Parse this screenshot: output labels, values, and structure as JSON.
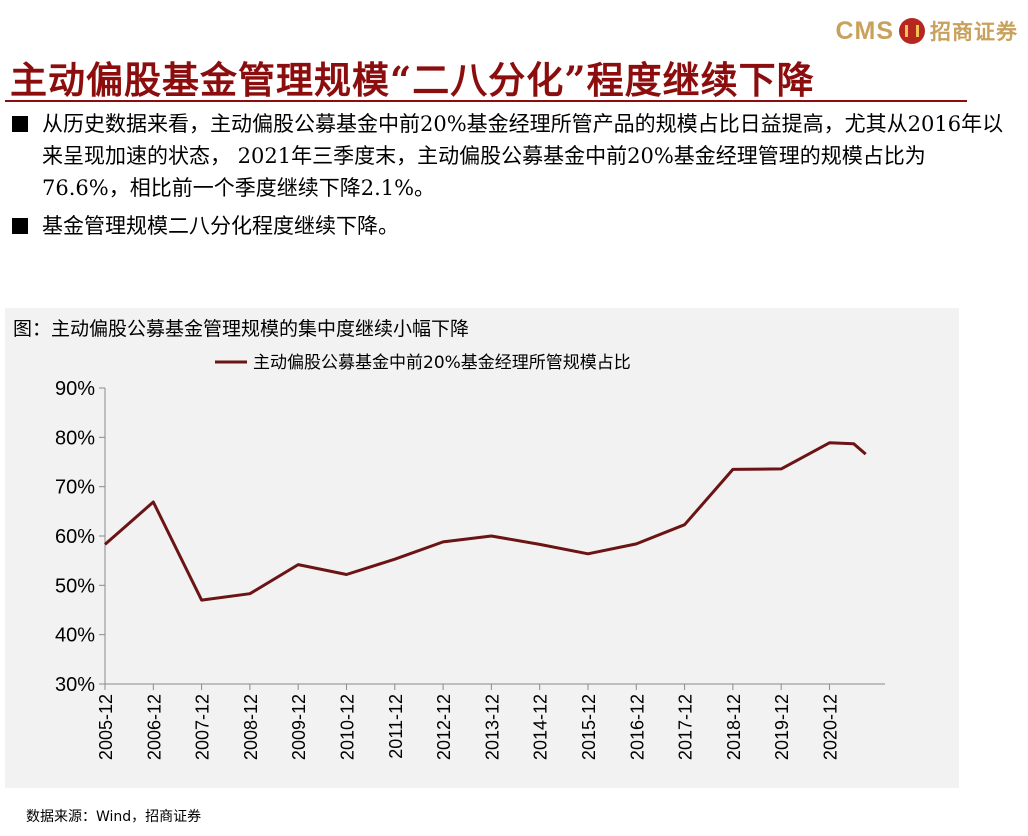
{
  "logo": {
    "cms": "CMS",
    "company": "招商证券"
  },
  "title": "主动偏股基金管理规模“二八分化”程度继续下降",
  "bullets": [
    "从历史数据来看，主动偏股公募基金中前20%基金经理所管产品的规模占比日益提高，尤其从2016年以来呈现加速的状态， 2021年三季度末，主动偏股公募基金中前20%基金经理管理的规模占比为76.6%，相比前一个季度继续下降2.1%。",
    "基金管理规模二八分化程度继续下降。"
  ],
  "chart_data": {
    "type": "line",
    "title": "图：主动偏股公募基金管理规模的集中度继续小幅下降",
    "legend": [
      "主动偏股公募基金中前20%基金经理所管规模占比"
    ],
    "legend_position": "top-center",
    "ylim": [
      30,
      90
    ],
    "yticks": [
      "30%",
      "40%",
      "50%",
      "60%",
      "70%",
      "80%",
      "90%"
    ],
    "xticks": [
      "2005-12",
      "2006-12",
      "2007-12",
      "2008-12",
      "2009-12",
      "2010-12",
      "2011-12",
      "2012-12",
      "2013-12",
      "2014-12",
      "2015-12",
      "2016-12",
      "2017-12",
      "2018-12",
      "2019-12",
      "2020-12"
    ],
    "grid": false,
    "series_color": "#6b1415",
    "series": [
      {
        "name": "主动偏股公募基金中前20%基金经理所管规模占比",
        "x": [
          "2005-12",
          "2006-12",
          "2007-12",
          "2008-12",
          "2009-12",
          "2010-12",
          "2011-12",
          "2012-12",
          "2013-12",
          "2014-12",
          "2015-12",
          "2016-12",
          "2017-12",
          "2018-12",
          "2019-12",
          "2020-12",
          "2021-03",
          "2021-06",
          "2021-09"
        ],
        "values": [
          58.3,
          66.9,
          47.0,
          48.3,
          54.2,
          52.2,
          55.3,
          58.8,
          60.0,
          58.3,
          56.4,
          58.4,
          62.3,
          73.5,
          73.6,
          78.9,
          78.8,
          78.7,
          76.6
        ]
      }
    ]
  },
  "source": "数据来源：Wind，招商证券"
}
